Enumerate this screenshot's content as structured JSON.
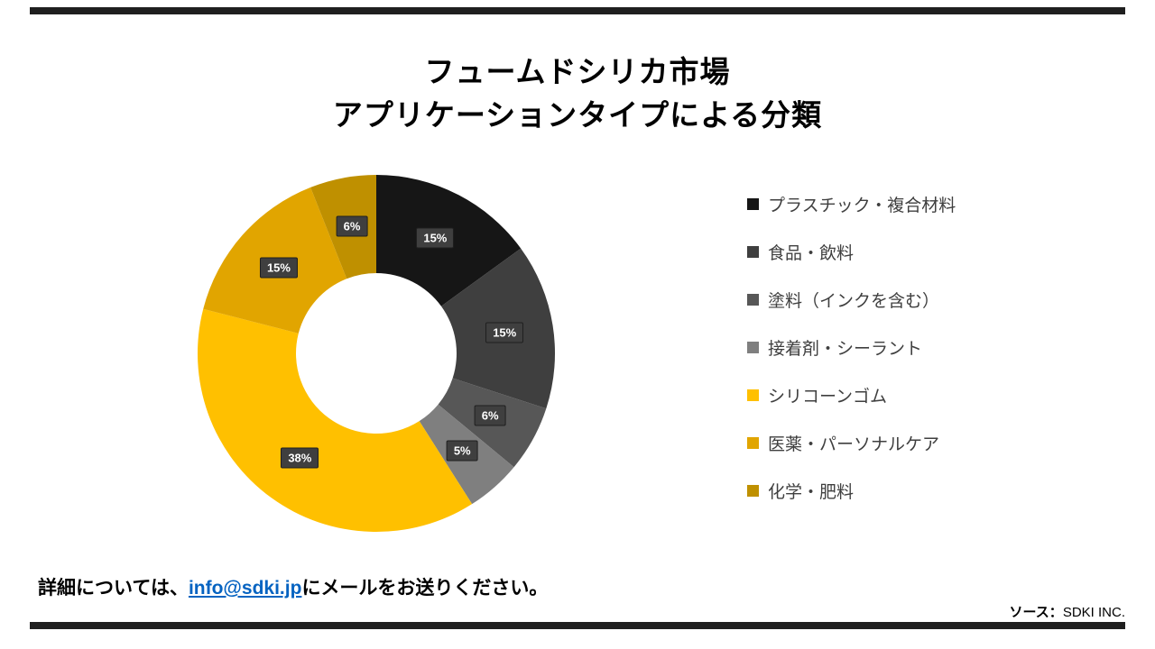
{
  "title": {
    "line1": "フュームドシリカ市場",
    "line2": "アプリケーションタイプによる分類"
  },
  "chart_data": {
    "type": "pie",
    "subtype": "donut",
    "title": "フュームドシリカ市場 アプリケーションタイプによる分類",
    "start_angle_deg": 0,
    "direction": "clockwise",
    "inner_radius_ratio": 0.45,
    "legend_position": "right",
    "data_label_format": "percent",
    "segments": [
      {
        "label": "プラスチック・複合材料",
        "value": 15,
        "color": "#161616"
      },
      {
        "label": "食品・飲料",
        "value": 15,
        "color": "#3f3f3f"
      },
      {
        "label": "塗料（インクを含む）",
        "value": 6,
        "color": "#575757"
      },
      {
        "label": "接着剤・シーラント",
        "value": 5,
        "color": "#7f7f7f"
      },
      {
        "label": "シリコーンゴム",
        "value": 38,
        "color": "#ffc000"
      },
      {
        "label": "医薬・パーソナルケア",
        "value": 15,
        "color": "#e1a500"
      },
      {
        "label": "化学・肥料",
        "value": 6,
        "color": "#bf9000"
      }
    ]
  },
  "footer": {
    "pre_text": "詳細については、",
    "email": "info@sdki.jp",
    "post_text": "にメールをお送りください。",
    "source_label": "ソース：",
    "source_value": "SDKI INC."
  }
}
